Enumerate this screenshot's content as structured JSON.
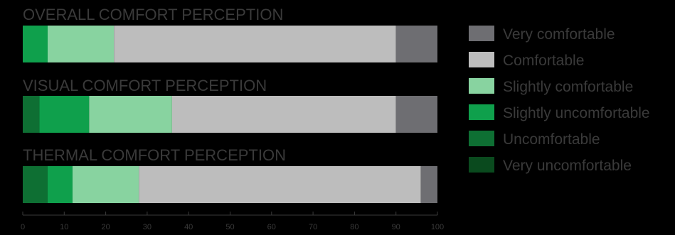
{
  "chart_data": {
    "type": "bar",
    "orientation": "horizontal",
    "stacked": true,
    "xlim": [
      0,
      100
    ],
    "xticks": [
      "0",
      "10",
      "20",
      "30",
      "40",
      "50",
      "60",
      "70",
      "80",
      "90",
      "100"
    ],
    "categories": [
      "OVERALL COMFORT PERCEPTION",
      "VISUAL COMFORT PERCEPTION",
      "THERMAL COMFORT PERCEPTION"
    ],
    "series": [
      {
        "name": "Very uncomfortable",
        "color": "#0a4a1e",
        "values": [
          0,
          0,
          0
        ]
      },
      {
        "name": "Uncomfortable",
        "color": "#0e6f33",
        "values": [
          0,
          4,
          6
        ]
      },
      {
        "name": "Slightly uncomfortable",
        "color": "#0fa04c",
        "values": [
          6,
          12,
          6
        ]
      },
      {
        "name": "Slightly comfortable",
        "color": "#88d3a0",
        "values": [
          16,
          20,
          16
        ]
      },
      {
        "name": "Comfortable",
        "color": "#bdbdbd",
        "values": [
          68,
          54,
          68
        ]
      },
      {
        "name": "Very comfortable",
        "color": "#6e6e72",
        "values": [
          10,
          10,
          4
        ]
      }
    ],
    "legend_position": "right",
    "legend_order": [
      "Very comfortable",
      "Comfortable",
      "Slightly comfortable",
      "Slightly uncomfortable",
      "Uncomfortable",
      "Very uncomfortable"
    ]
  }
}
